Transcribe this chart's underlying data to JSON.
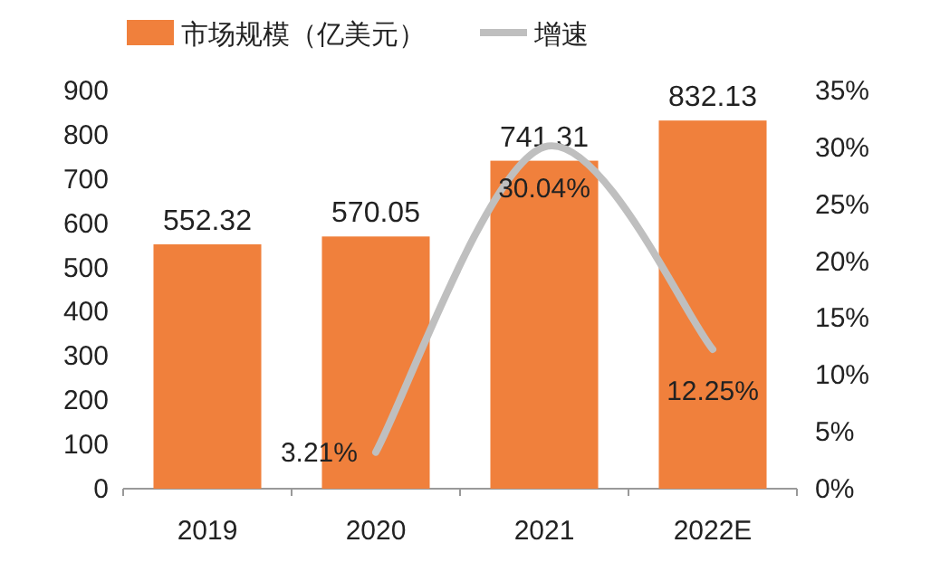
{
  "chart_data": {
    "type": "bar",
    "categories": [
      "2019",
      "2020",
      "2021",
      "2022E"
    ],
    "series": [
      {
        "name": "市场规模（亿美元）",
        "color": "#f0803c",
        "values": [
          552.32,
          570.05,
          741.31,
          832.13
        ]
      },
      {
        "name": "增速",
        "type": "line",
        "axis": "y2",
        "color": "#bfbfbf",
        "values": [
          null,
          3.21,
          30.04,
          12.25
        ],
        "value_labels": [
          null,
          "3.21%",
          "30.04%",
          "12.25%"
        ]
      }
    ],
    "data_labels": true,
    "ylim": [
      0,
      900
    ],
    "yticks": [
      0,
      100,
      200,
      300,
      400,
      500,
      600,
      700,
      800,
      900
    ],
    "y2lim": [
      0,
      35
    ],
    "y2ticks": [
      {
        "value": 0,
        "label": "0%"
      },
      {
        "value": 5,
        "label": "5%"
      },
      {
        "value": 10,
        "label": "10%"
      },
      {
        "value": 15,
        "label": "15%"
      },
      {
        "value": 20,
        "label": "20%"
      },
      {
        "value": 25,
        "label": "25%"
      },
      {
        "value": 30,
        "label": "30%"
      },
      {
        "value": 35,
        "label": "35%"
      }
    ],
    "legend": "top"
  }
}
